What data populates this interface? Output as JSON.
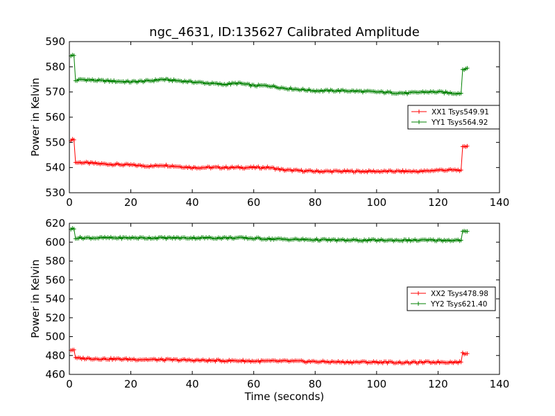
{
  "chart_data": [
    {
      "type": "line",
      "title": "ngc_4631, ID:135627 Calibrated Amplitude",
      "xlabel": "",
      "ylabel": "Power in Kelvin",
      "xlim": [
        0,
        140
      ],
      "ylim": [
        530,
        590
      ],
      "x_ticks": [
        0,
        20,
        40,
        60,
        80,
        100,
        120,
        140
      ],
      "y_ticks": [
        530,
        540,
        550,
        560,
        570,
        580,
        590
      ],
      "grid": false,
      "legend_position": "right",
      "marker": "plus",
      "x": [
        0.5,
        1.5,
        2,
        4,
        10,
        20,
        27,
        30,
        40,
        50,
        55,
        60,
        65,
        70,
        80,
        90,
        100,
        110,
        115,
        120,
        125,
        127.5,
        128,
        129.5
      ],
      "series": [
        {
          "name": "XX1 Tsys549.91",
          "color": "#ff0000",
          "values": [
            551,
            551,
            542,
            542,
            541.5,
            541,
            540.5,
            541,
            540,
            540,
            540,
            540,
            540,
            539,
            538.5,
            538.5,
            538.5,
            538.5,
            538.5,
            539,
            539,
            539,
            548,
            548.5
          ]
        },
        {
          "name": "YY1 Tsys564.92",
          "color": "#008000",
          "values": [
            584.5,
            584.5,
            574.5,
            575,
            574.5,
            574,
            574.5,
            575,
            574,
            573,
            573.5,
            572.5,
            572.5,
            571.5,
            570.5,
            570.5,
            570,
            569.5,
            570,
            570,
            569.5,
            569.5,
            579,
            579.5
          ]
        }
      ]
    },
    {
      "type": "line",
      "title": "",
      "xlabel": "Time (seconds)",
      "ylabel": "Power in Kelvin",
      "xlim": [
        0,
        140
      ],
      "ylim": [
        460,
        620
      ],
      "x_ticks": [
        0,
        20,
        40,
        60,
        80,
        100,
        120,
        140
      ],
      "y_ticks": [
        460,
        480,
        500,
        520,
        540,
        560,
        580,
        600,
        620
      ],
      "grid": false,
      "legend_position": "right",
      "marker": "plus",
      "x": [
        0.5,
        1.5,
        2,
        4,
        10,
        20,
        30,
        40,
        50,
        55,
        60,
        70,
        80,
        90,
        100,
        110,
        120,
        127.5,
        128,
        129.5
      ],
      "series": [
        {
          "name": "XX2 Tsys478.98",
          "color": "#ff0000",
          "values": [
            486,
            486,
            477,
            477,
            476.5,
            476,
            475.5,
            475,
            474.5,
            474.5,
            474,
            474,
            473.5,
            473,
            473,
            472.5,
            473,
            473,
            482,
            482
          ]
        },
        {
          "name": "YY2 Tsys621.40",
          "color": "#008000",
          "values": [
            614,
            614,
            604.5,
            604.5,
            604.5,
            604.5,
            604.5,
            604.5,
            604.5,
            604.5,
            604,
            603,
            602.5,
            602,
            602,
            602,
            602,
            602,
            611,
            611.5
          ]
        }
      ]
    }
  ]
}
